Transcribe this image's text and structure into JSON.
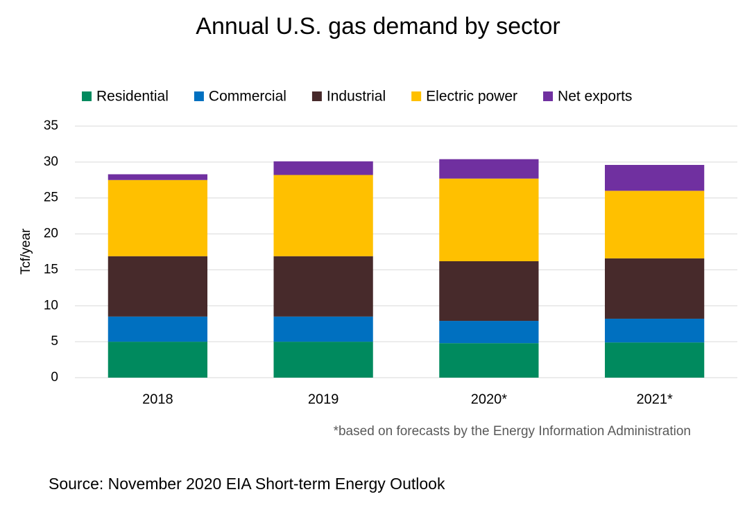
{
  "chart_data": {
    "type": "stacked_bar",
    "title": "Annual U.S. gas demand by sector",
    "categories": [
      "2018",
      "2019",
      "2020*",
      "2021*"
    ],
    "series": [
      {
        "name": "Residential",
        "color": "#008a5e",
        "values": [
          5.0,
          5.0,
          4.8,
          4.9
        ]
      },
      {
        "name": "Commercial",
        "color": "#0070c0",
        "values": [
          3.5,
          3.5,
          3.1,
          3.3
        ]
      },
      {
        "name": "Industrial",
        "color": "#472a2b",
        "values": [
          8.4,
          8.4,
          8.3,
          8.4
        ]
      },
      {
        "name": "Electric power",
        "color": "#ffc000",
        "values": [
          10.6,
          11.3,
          11.5,
          9.4
        ]
      },
      {
        "name": "Net exports",
        "color": "#7030a0",
        "values": [
          0.8,
          1.9,
          2.7,
          3.6
        ]
      }
    ],
    "ylabel": "Tcf/year",
    "ylim": [
      0,
      35
    ],
    "yticks": [
      0,
      5,
      10,
      15,
      20,
      25,
      30,
      35
    ],
    "grid": true,
    "legend": "top",
    "note": "*based on forecasts by the Energy Information Administration",
    "source": "Source: November 2020 EIA Short-term Energy Outlook"
  }
}
